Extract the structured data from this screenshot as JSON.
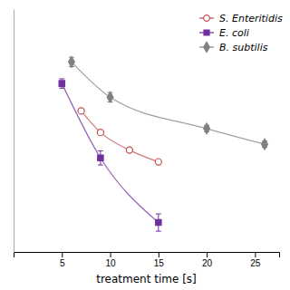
{
  "chart_data": {
    "type": "line",
    "xlabel": "treatment time [s]",
    "series": [
      {
        "name": "S. Enteritidis",
        "color": "#c0504d",
        "marker": "circle-open",
        "x": [
          7,
          9,
          12,
          15
        ],
        "values": [
          5.4,
          4.85,
          4.4,
          4.1
        ]
      },
      {
        "name": "E. coli",
        "color": "#7030a0",
        "marker": "square",
        "x": [
          5,
          9,
          15
        ],
        "values": [
          6.1,
          4.2,
          2.55
        ],
        "errors": [
          0.12,
          0.18,
          0.22
        ]
      },
      {
        "name": "B. subtilis",
        "color": "#808080",
        "marker": "diamond",
        "x": [
          6,
          10,
          20,
          26
        ],
        "values": [
          6.65,
          5.75,
          4.95,
          4.55
        ],
        "errors": [
          0.12,
          0.12,
          0.08,
          0.08
        ]
      }
    ],
    "xlim": [
      0,
      27.5
    ],
    "ylim": [
      1.8,
      8.0
    ],
    "xticks": [
      5,
      10,
      15,
      20,
      25
    ],
    "tick_labels": "x",
    "legend": "upper right"
  }
}
